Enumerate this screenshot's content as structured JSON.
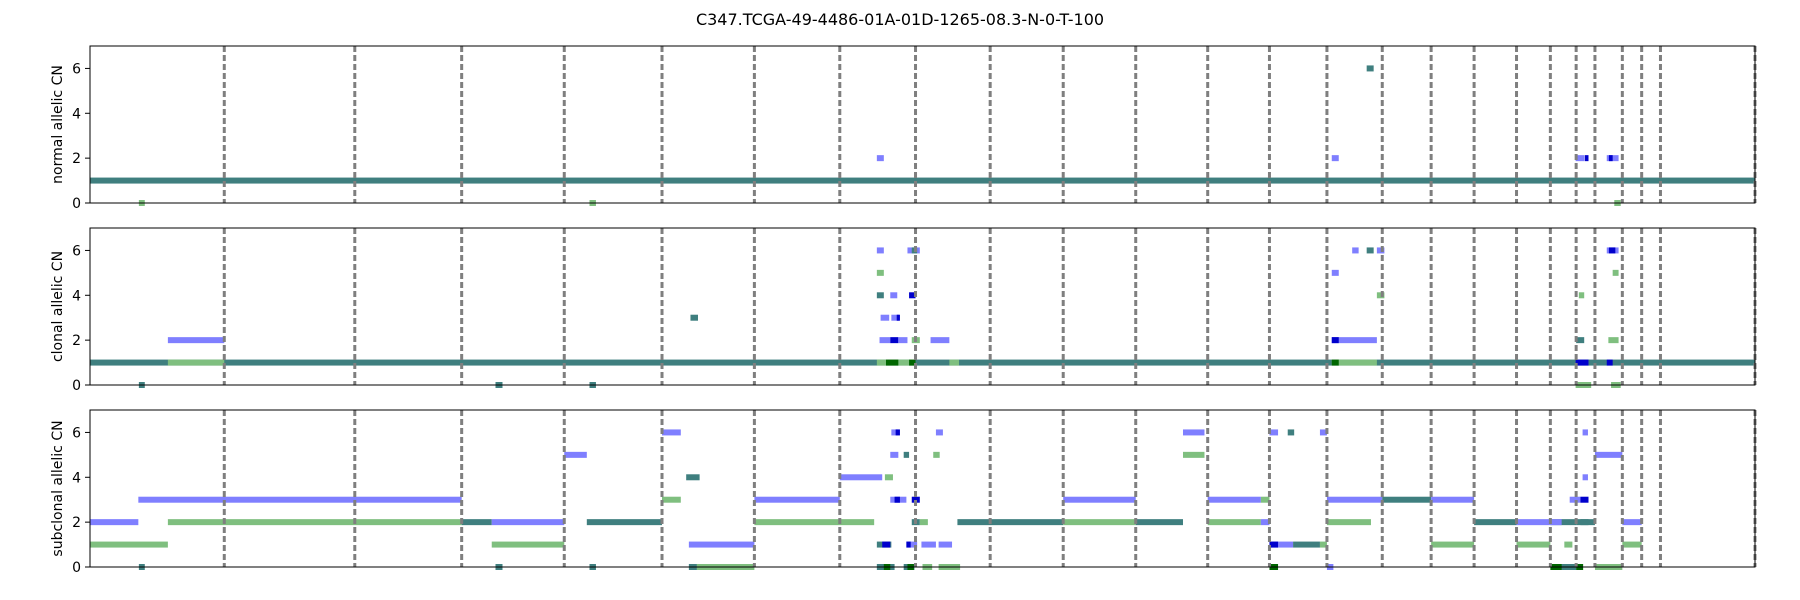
{
  "title": "C347.TCGA-49-4486-01A-01D-1265-08.3-N-0-T-100",
  "colors": {
    "both": "#3f7f7f",
    "major": "#7f7fff",
    "minor": "#7fbf7f",
    "boundary": "#7f7f7f",
    "dense_major": "#0000cc",
    "dense_minor": "#006600"
  },
  "chart_data": {
    "type": "segments",
    "x_extent": [
      0,
      3100
    ],
    "chromosome_boundaries": [
      0,
      250,
      493,
      692,
      883,
      1065,
      1237,
      1396,
      1537,
      1676,
      1812,
      1947,
      2081,
      2196,
      2303,
      2406,
      2497,
      2577,
      2656,
      2719,
      2767,
      2802,
      2853,
      2889,
      2924
    ],
    "panels": [
      {
        "ylabel": "normal allelic CN",
        "ylim": [
          0,
          7
        ],
        "yticks": [
          0,
          2,
          4,
          6
        ],
        "segments": [
          {
            "s": 0,
            "e": 3100,
            "y": 1,
            "c": "both"
          },
          {
            "s": 1465,
            "e": 1478,
            "y": 2,
            "c": "major"
          },
          {
            "s": 2312,
            "e": 2325,
            "y": 2,
            "c": "major"
          },
          {
            "s": 2766,
            "e": 2782,
            "y": 2,
            "c": "major"
          },
          {
            "s": 2783,
            "e": 2790,
            "y": 2,
            "c": "dense_major"
          },
          {
            "s": 2824,
            "e": 2846,
            "y": 2,
            "c": "major"
          },
          {
            "s": 2828,
            "e": 2835,
            "y": 2,
            "c": "dense_major"
          },
          {
            "s": 2377,
            "e": 2390,
            "y": 6,
            "c": "both"
          },
          {
            "s": 91,
            "e": 102,
            "y": 0,
            "c": "minor"
          },
          {
            "s": 930,
            "e": 942,
            "y": 0,
            "c": "minor"
          },
          {
            "s": 2838,
            "e": 2850,
            "y": 0,
            "c": "minor"
          }
        ]
      },
      {
        "ylabel": "clonal allelic CN",
        "ylim": [
          0,
          7
        ],
        "yticks": [
          0,
          2,
          4,
          6
        ],
        "segments": [
          {
            "s": 0,
            "e": 3100,
            "y": 1,
            "c": "both"
          },
          {
            "s": 145,
            "e": 250,
            "y": 1,
            "c": "minor"
          },
          {
            "s": 145,
            "e": 250,
            "y": 2,
            "c": "major"
          },
          {
            "s": 1465,
            "e": 1537,
            "y": 1,
            "c": "minor"
          },
          {
            "s": 1482,
            "e": 1505,
            "y": 1,
            "c": "dense_minor"
          },
          {
            "s": 1525,
            "e": 1537,
            "y": 1,
            "c": "dense_minor"
          },
          {
            "s": 1600,
            "e": 1618,
            "y": 1,
            "c": "minor"
          },
          {
            "s": 2312,
            "e": 2396,
            "y": 1,
            "c": "minor"
          },
          {
            "s": 2312,
            "e": 2325,
            "y": 1,
            "c": "dense_minor"
          },
          {
            "s": 2766,
            "e": 2790,
            "y": 1,
            "c": "dense_major"
          },
          {
            "s": 2824,
            "e": 2835,
            "y": 1,
            "c": "dense_major"
          },
          {
            "s": 91,
            "e": 102,
            "y": 0,
            "c": "both"
          },
          {
            "s": 755,
            "e": 768,
            "y": 0,
            "c": "both"
          },
          {
            "s": 930,
            "e": 942,
            "y": 0,
            "c": "both"
          },
          {
            "s": 2766,
            "e": 2795,
            "y": 0,
            "c": "minor"
          },
          {
            "s": 2832,
            "e": 2850,
            "y": 0,
            "c": "minor"
          },
          {
            "s": 1118,
            "e": 1132,
            "y": 3,
            "c": "both"
          },
          {
            "s": 1470,
            "e": 1490,
            "y": 2,
            "c": "major"
          },
          {
            "s": 1490,
            "e": 1505,
            "y": 2,
            "c": "dense_major"
          },
          {
            "s": 1505,
            "e": 1522,
            "y": 2,
            "c": "major"
          },
          {
            "s": 1530,
            "e": 1545,
            "y": 2,
            "c": "minor"
          },
          {
            "s": 1565,
            "e": 1600,
            "y": 2,
            "c": "major"
          },
          {
            "s": 1472,
            "e": 1488,
            "y": 3,
            "c": "major"
          },
          {
            "s": 1492,
            "e": 1506,
            "y": 3,
            "c": "major"
          },
          {
            "s": 1502,
            "e": 1508,
            "y": 3,
            "c": "dense_major"
          },
          {
            "s": 1465,
            "e": 1478,
            "y": 4,
            "c": "both"
          },
          {
            "s": 1490,
            "e": 1503,
            "y": 4,
            "c": "major"
          },
          {
            "s": 1525,
            "e": 1537,
            "y": 4,
            "c": "dense_major"
          },
          {
            "s": 1465,
            "e": 1478,
            "y": 5,
            "c": "minor"
          },
          {
            "s": 1465,
            "e": 1478,
            "y": 6,
            "c": "major"
          },
          {
            "s": 1522,
            "e": 1545,
            "y": 6,
            "c": "major"
          },
          {
            "s": 1530,
            "e": 1540,
            "y": 6,
            "c": "both"
          },
          {
            "s": 2312,
            "e": 2396,
            "y": 2,
            "c": "major"
          },
          {
            "s": 2312,
            "e": 2325,
            "y": 2,
            "c": "dense_major"
          },
          {
            "s": 2312,
            "e": 2325,
            "y": 5,
            "c": "major"
          },
          {
            "s": 2350,
            "e": 2362,
            "y": 6,
            "c": "major"
          },
          {
            "s": 2377,
            "e": 2390,
            "y": 6,
            "c": "both"
          },
          {
            "s": 2396,
            "e": 2410,
            "y": 6,
            "c": "major"
          },
          {
            "s": 2396,
            "e": 2410,
            "y": 4,
            "c": "minor"
          },
          {
            "s": 2767,
            "e": 2782,
            "y": 2,
            "c": "both"
          },
          {
            "s": 2772,
            "e": 2782,
            "y": 4,
            "c": "minor"
          },
          {
            "s": 2827,
            "e": 2846,
            "y": 2,
            "c": "minor"
          },
          {
            "s": 2835,
            "e": 2846,
            "y": 5,
            "c": "minor"
          },
          {
            "s": 2824,
            "e": 2846,
            "y": 6,
            "c": "major"
          },
          {
            "s": 2828,
            "e": 2840,
            "y": 6,
            "c": "dense_major"
          }
        ]
      },
      {
        "ylabel": "subclonal allelic CN",
        "ylim": [
          0,
          7
        ],
        "yticks": [
          0,
          2,
          4,
          6
        ],
        "segments": [
          {
            "s": 0,
            "e": 90,
            "y": 2,
            "c": "major"
          },
          {
            "s": 90,
            "e": 692,
            "y": 3,
            "c": "major"
          },
          {
            "s": 0,
            "e": 145,
            "y": 1,
            "c": "minor"
          },
          {
            "s": 145,
            "e": 692,
            "y": 2,
            "c": "minor"
          },
          {
            "s": 91,
            "e": 102,
            "y": 0,
            "c": "both"
          },
          {
            "s": 692,
            "e": 748,
            "y": 2,
            "c": "both"
          },
          {
            "s": 748,
            "e": 883,
            "y": 2,
            "c": "major"
          },
          {
            "s": 748,
            "e": 883,
            "y": 1,
            "c": "minor"
          },
          {
            "s": 755,
            "e": 768,
            "y": 0,
            "c": "both"
          },
          {
            "s": 883,
            "e": 925,
            "y": 5,
            "c": "major"
          },
          {
            "s": 925,
            "e": 1065,
            "y": 2,
            "c": "both"
          },
          {
            "s": 930,
            "e": 942,
            "y": 0,
            "c": "both"
          },
          {
            "s": 1065,
            "e": 1100,
            "y": 6,
            "c": "major"
          },
          {
            "s": 1065,
            "e": 1100,
            "y": 3,
            "c": "minor"
          },
          {
            "s": 1110,
            "e": 1135,
            "y": 4,
            "c": "both"
          },
          {
            "s": 1115,
            "e": 1237,
            "y": 1,
            "c": "major"
          },
          {
            "s": 1115,
            "e": 1130,
            "y": 0,
            "c": "both"
          },
          {
            "s": 1130,
            "e": 1237,
            "y": 0,
            "c": "minor"
          },
          {
            "s": 1237,
            "e": 1396,
            "y": 3,
            "c": "major"
          },
          {
            "s": 1237,
            "e": 1460,
            "y": 2,
            "c": "minor"
          },
          {
            "s": 1396,
            "e": 1475,
            "y": 4,
            "c": "major"
          },
          {
            "s": 1480,
            "e": 1495,
            "y": 4,
            "c": "minor"
          },
          {
            "s": 1465,
            "e": 1492,
            "y": 1,
            "c": "both"
          },
          {
            "s": 1475,
            "e": 1490,
            "y": 1,
            "c": "dense_major"
          },
          {
            "s": 1465,
            "e": 1498,
            "y": 0,
            "c": "both"
          },
          {
            "s": 1478,
            "e": 1490,
            "y": 0,
            "c": "dense_minor"
          },
          {
            "s": 1490,
            "e": 1520,
            "y": 3,
            "c": "major"
          },
          {
            "s": 1498,
            "e": 1508,
            "y": 3,
            "c": "dense_major"
          },
          {
            "s": 1530,
            "e": 1545,
            "y": 3,
            "c": "dense_major"
          },
          {
            "s": 1490,
            "e": 1505,
            "y": 5,
            "c": "major"
          },
          {
            "s": 1515,
            "e": 1525,
            "y": 5,
            "c": "both"
          },
          {
            "s": 1492,
            "e": 1505,
            "y": 6,
            "c": "major"
          },
          {
            "s": 1500,
            "e": 1508,
            "y": 6,
            "c": "dense_major"
          },
          {
            "s": 1530,
            "e": 1545,
            "y": 2,
            "c": "both"
          },
          {
            "s": 1520,
            "e": 1540,
            "y": 1,
            "c": "major"
          },
          {
            "s": 1520,
            "e": 1528,
            "y": 1,
            "c": "dense_major"
          },
          {
            "s": 1548,
            "e": 1575,
            "y": 1,
            "c": "major"
          },
          {
            "s": 1580,
            "e": 1605,
            "y": 1,
            "c": "major"
          },
          {
            "s": 1515,
            "e": 1535,
            "y": 0,
            "c": "both"
          },
          {
            "s": 1522,
            "e": 1534,
            "y": 0,
            "c": "dense_minor"
          },
          {
            "s": 1550,
            "e": 1568,
            "y": 0,
            "c": "minor"
          },
          {
            "s": 1580,
            "e": 1620,
            "y": 0,
            "c": "minor"
          },
          {
            "s": 1570,
            "e": 1582,
            "y": 5,
            "c": "minor"
          },
          {
            "s": 1575,
            "e": 1588,
            "y": 6,
            "c": "major"
          },
          {
            "s": 1545,
            "e": 1560,
            "y": 2,
            "c": "minor"
          },
          {
            "s": 1615,
            "e": 1812,
            "y": 2,
            "c": "both"
          },
          {
            "s": 1812,
            "e": 1947,
            "y": 3,
            "c": "major"
          },
          {
            "s": 1812,
            "e": 1947,
            "y": 2,
            "c": "minor"
          },
          {
            "s": 1947,
            "e": 2035,
            "y": 2,
            "c": "both"
          },
          {
            "s": 2035,
            "e": 2075,
            "y": 6,
            "c": "major"
          },
          {
            "s": 2035,
            "e": 2075,
            "y": 5,
            "c": "minor"
          },
          {
            "s": 2081,
            "e": 2180,
            "y": 3,
            "c": "major"
          },
          {
            "s": 2081,
            "e": 2180,
            "y": 2,
            "c": "minor"
          },
          {
            "s": 2180,
            "e": 2196,
            "y": 2,
            "c": "major"
          },
          {
            "s": 2180,
            "e": 2196,
            "y": 3,
            "c": "minor"
          },
          {
            "s": 2196,
            "e": 2240,
            "y": 1,
            "c": "major"
          },
          {
            "s": 2196,
            "e": 2212,
            "y": 1,
            "c": "dense_major"
          },
          {
            "s": 2240,
            "e": 2290,
            "y": 1,
            "c": "both"
          },
          {
            "s": 2196,
            "e": 2212,
            "y": 0,
            "c": "dense_minor"
          },
          {
            "s": 2196,
            "e": 2212,
            "y": 6,
            "c": "major"
          },
          {
            "s": 2230,
            "e": 2242,
            "y": 6,
            "c": "both"
          },
          {
            "s": 2290,
            "e": 2303,
            "y": 1,
            "c": "minor"
          },
          {
            "s": 2290,
            "e": 2303,
            "y": 6,
            "c": "major"
          },
          {
            "s": 2303,
            "e": 2406,
            "y": 3,
            "c": "major"
          },
          {
            "s": 2303,
            "e": 2385,
            "y": 2,
            "c": "minor"
          },
          {
            "s": 2303,
            "e": 2315,
            "y": 0,
            "c": "major"
          },
          {
            "s": 2406,
            "e": 2497,
            "y": 3,
            "c": "both"
          },
          {
            "s": 2497,
            "e": 2577,
            "y": 3,
            "c": "major"
          },
          {
            "s": 2497,
            "e": 2577,
            "y": 1,
            "c": "minor"
          },
          {
            "s": 2577,
            "e": 2656,
            "y": 2,
            "c": "both"
          },
          {
            "s": 2656,
            "e": 2719,
            "y": 2,
            "c": "major"
          },
          {
            "s": 2656,
            "e": 2719,
            "y": 1,
            "c": "minor"
          },
          {
            "s": 2719,
            "e": 2767,
            "y": 2,
            "c": "both"
          },
          {
            "s": 2719,
            "e": 2740,
            "y": 2,
            "c": "major"
          },
          {
            "s": 2719,
            "e": 2755,
            "y": 0,
            "c": "dense_minor"
          },
          {
            "s": 2740,
            "e": 2767,
            "y": 0,
            "c": "both"
          },
          {
            "s": 2745,
            "e": 2760,
            "y": 1,
            "c": "minor"
          },
          {
            "s": 2755,
            "e": 2775,
            "y": 3,
            "c": "major"
          },
          {
            "s": 2775,
            "e": 2790,
            "y": 3,
            "c": "dense_major"
          },
          {
            "s": 2775,
            "e": 2790,
            "y": 2,
            "c": "both"
          },
          {
            "s": 2779,
            "e": 2789,
            "y": 4,
            "c": "major"
          },
          {
            "s": 2779,
            "e": 2789,
            "y": 6,
            "c": "major"
          },
          {
            "s": 2767,
            "e": 2802,
            "y": 2,
            "c": "both"
          },
          {
            "s": 2767,
            "e": 2780,
            "y": 0,
            "c": "dense_minor"
          },
          {
            "s": 2802,
            "e": 2853,
            "y": 5,
            "c": "major"
          },
          {
            "s": 2802,
            "e": 2853,
            "y": 0,
            "c": "minor"
          },
          {
            "s": 2853,
            "e": 2889,
            "y": 2,
            "c": "major"
          },
          {
            "s": 2853,
            "e": 2889,
            "y": 1,
            "c": "minor"
          }
        ]
      }
    ]
  }
}
